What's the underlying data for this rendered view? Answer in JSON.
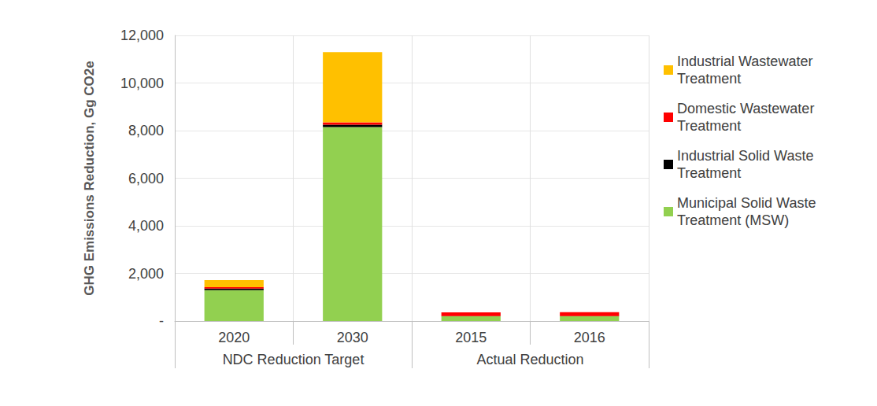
{
  "chart_data": {
    "type": "bar",
    "stacked": true,
    "y_label": "GHG Emissions Reduction, Gg CO2e",
    "categories": [
      "2020",
      "2030",
      "2015",
      "2016"
    ],
    "category_groups": [
      {
        "name": "NDC Reduction Target",
        "count": 2
      },
      {
        "name": "Actual Reduction",
        "count": 2
      }
    ],
    "series": [
      {
        "name": "Municipal Solid Waste Treatment (MSW)",
        "color": "#92D050",
        "values": [
          1300,
          8150,
          200,
          200
        ]
      },
      {
        "name": "Industrial Solid Waste Treatment",
        "color": "#000000",
        "values": [
          60,
          100,
          10,
          10
        ]
      },
      {
        "name": "Domestic Wastewater Treatment",
        "color": "#FF0000",
        "values": [
          60,
          100,
          150,
          160
        ]
      },
      {
        "name": "Industrial Wastewater Treatment",
        "color": "#FFC000",
        "values": [
          300,
          2950,
          0,
          0
        ]
      }
    ],
    "ylim": [
      0,
      12000
    ],
    "yticks": [
      {
        "value": 0,
        "label": "-"
      },
      {
        "value": 2000,
        "label": "2,000"
      },
      {
        "value": 4000,
        "label": "4,000"
      },
      {
        "value": 6000,
        "label": "6,000"
      },
      {
        "value": 8000,
        "label": "8,000"
      },
      {
        "value": 10000,
        "label": "10,000"
      },
      {
        "value": 12000,
        "label": "12,000"
      }
    ],
    "grid": true,
    "legend": "right"
  }
}
